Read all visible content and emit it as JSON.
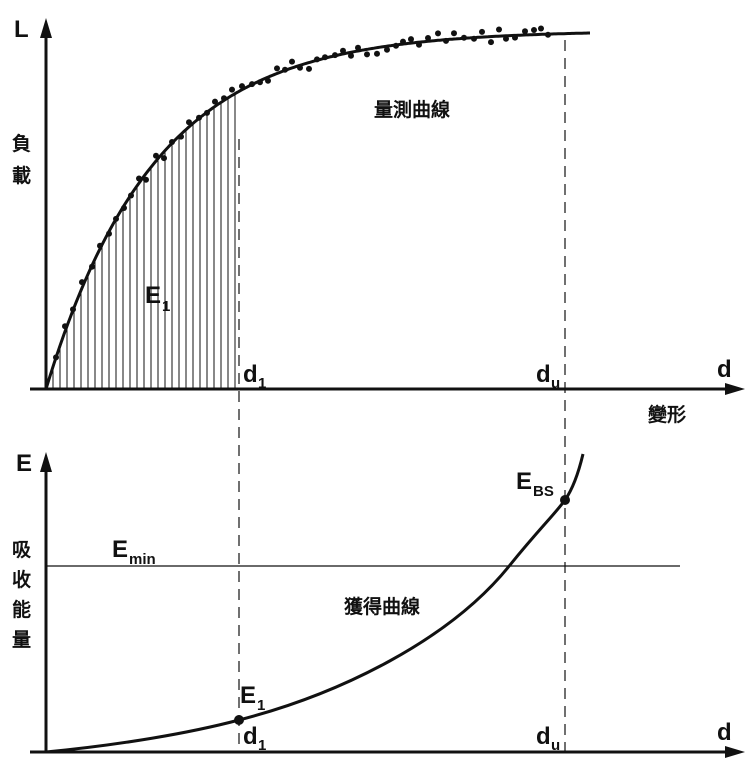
{
  "top": {
    "y_axis_label": "L",
    "y_axis_text": [
      "負",
      "載"
    ],
    "x_axis_label": "d",
    "x_axis_text": "變形",
    "curve_label": "量測曲線",
    "area_label": "E",
    "area_label_sub": "1",
    "d1_label": "d",
    "d1_sub": "1",
    "du_label": "d",
    "du_sub": "u"
  },
  "bottom": {
    "y_axis_label": "E",
    "y_axis_text": [
      "吸",
      "收",
      "能",
      "量"
    ],
    "x_axis_label": "d",
    "curve_label": "獲得曲線",
    "emin_label": "E",
    "emin_sub": "min",
    "ebs_label": "E",
    "ebs_sub": "BS",
    "e1_label": "E",
    "e1_sub": "1",
    "d1_label": "d",
    "d1_sub": "1",
    "du_label": "d",
    "du_sub": "u"
  },
  "colors": {
    "ink": "#111111",
    "background": "#ffffff"
  }
}
